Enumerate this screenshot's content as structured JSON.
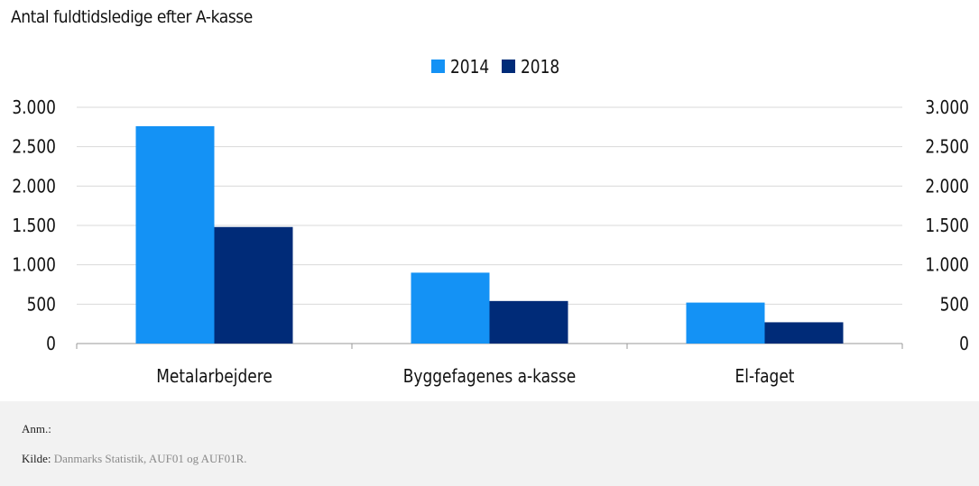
{
  "title": "Antal fuldtidsledige efter A-kasse",
  "footer": {
    "note_label": "Anm.:",
    "source_label": "Kilde:",
    "source_value": "Danmarks Statistik, AUF01 og AUF01R."
  },
  "colors": {
    "series_2014": "#1492f5",
    "series_2018": "#002b78",
    "axis": "#999999",
    "grid": "#d9d9d9"
  },
  "chart_data": {
    "type": "bar",
    "title": "Antal fuldtidsledige efter A-kasse",
    "categories": [
      "Metalarbejdere",
      "Byggefagenes a-kasse",
      "El-faget"
    ],
    "series": [
      {
        "name": "2014",
        "values": [
          2760,
          900,
          520
        ]
      },
      {
        "name": "2018",
        "values": [
          1480,
          540,
          270
        ]
      }
    ],
    "ylim": [
      0,
      3000
    ],
    "yticks": [
      0,
      500,
      1000,
      1500,
      2000,
      2500,
      3000
    ],
    "ytick_labels": [
      "0",
      "500",
      "1.000",
      "1.500",
      "2.000",
      "2.500",
      "3.000"
    ],
    "secondary_y_axis": true,
    "grid": true,
    "legend": "top-center"
  }
}
